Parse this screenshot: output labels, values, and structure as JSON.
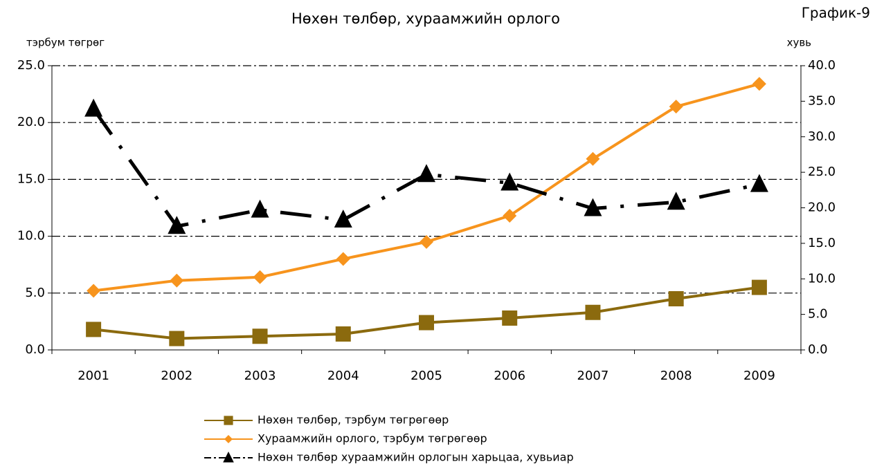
{
  "chart_data": {
    "type": "line",
    "title": "Нөхөн төлбөр, хураамжийн орлого",
    "annotation": "График-9",
    "ylabel": "тэрбум төгрөг",
    "y2label": "хувь",
    "categories": [
      "2001",
      "2002",
      "2003",
      "2004",
      "2005",
      "2006",
      "2007",
      "2008",
      "2009"
    ],
    "series": [
      {
        "name": "Нөхөн төлбөр, тэрбум төгрөгөөр",
        "color": "#8b6a0e",
        "marker": "square",
        "values": [
          1.8,
          1.0,
          1.2,
          1.4,
          2.4,
          2.8,
          3.3,
          4.5,
          5.5
        ]
      },
      {
        "name": "Хураамжийн орлого, тэрбум төгрөгөөр",
        "color": "#f7941d",
        "marker": "diamond",
        "values": [
          5.2,
          6.1,
          6.4,
          8.0,
          9.5,
          11.8,
          16.8,
          21.4,
          23.4
        ]
      },
      {
        "name": "Нөхөн төлбөр хураамжийн орлогын харьцаа, хувьиар",
        "color": "#000000",
        "marker": "triangle",
        "axis": "y2",
        "values": [
          33.9,
          17.4,
          19.7,
          18.3,
          24.7,
          23.5,
          19.9,
          20.8,
          23.3
        ]
      }
    ],
    "ylim": [
      0,
      25
    ],
    "yticks": [
      {
        "value": 0,
        "label": "0.0"
      },
      {
        "value": 5,
        "label": "5.0"
      },
      {
        "value": 10,
        "label": "10.0"
      },
      {
        "value": 15,
        "label": "15.0"
      },
      {
        "value": 20,
        "label": "20.0"
      },
      {
        "value": 25,
        "label": "25.0"
      }
    ],
    "y2lim": [
      0,
      40
    ],
    "y2ticks": [
      {
        "value": 0,
        "label": "0.0"
      },
      {
        "value": 5,
        "label": "5.0"
      },
      {
        "value": 10,
        "label": "10.0"
      },
      {
        "value": 15,
        "label": "15.0"
      },
      {
        "value": 20,
        "label": "20.0"
      },
      {
        "value": 25,
        "label": "25.0"
      },
      {
        "value": 30,
        "label": "30.0"
      },
      {
        "value": 35,
        "label": "35.0"
      },
      {
        "value": 40,
        "label": "40.0"
      }
    ],
    "grid": true
  }
}
